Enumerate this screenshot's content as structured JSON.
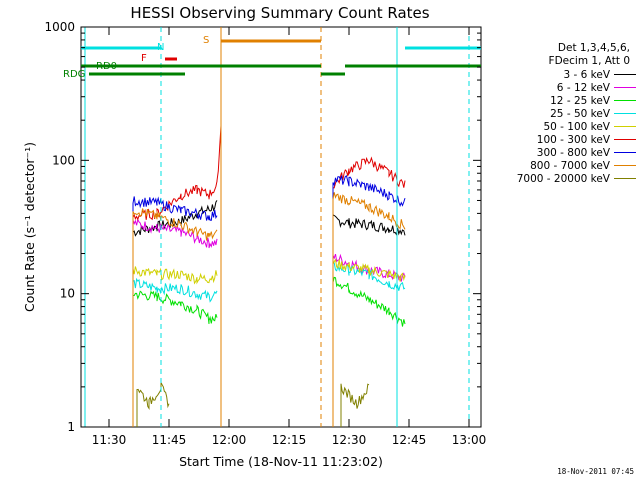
{
  "chart_data": {
    "type": "line",
    "title": "HESSI Observing Summary Count Rates",
    "xlabel": "Start Time (18-Nov-11 11:23:02)",
    "ylabel": "Count Rate (s⁻¹ detector⁻¹)",
    "yscale": "log",
    "ylim": [
      1,
      1000
    ],
    "xlim": [
      "11:23",
      "13:03"
    ],
    "x_ticks": [
      "11:30",
      "11:45",
      "12:00",
      "12:15",
      "12:30",
      "12:45",
      "13:00"
    ],
    "y_ticks": [
      "1",
      "10",
      "100",
      "1000"
    ],
    "legend_placement": "right",
    "legend_header": [
      "Det 1,3,4,5,6,",
      "FDecim 1, Att 0"
    ],
    "series": [
      {
        "name": "3 - 6 keV",
        "color": "#000000",
        "x": [
          "11:36",
          "11:42",
          "11:48",
          "11:52",
          "11:55",
          "11:57",
          "12:26",
          "12:30",
          "12:35",
          "12:40",
          "12:44"
        ],
        "values": [
          29,
          32,
          35,
          40,
          43,
          47,
          36,
          34,
          33,
          31,
          30
        ]
      },
      {
        "name": "6 - 12 keV",
        "color": "#e000e0",
        "x": [
          "11:36",
          "11:42",
          "11:48",
          "11:52",
          "11:55",
          "11:57",
          "12:26",
          "12:30",
          "12:35",
          "12:40",
          "12:44"
        ],
        "values": [
          34,
          31,
          29,
          26,
          24,
          24,
          19,
          17,
          15,
          14,
          13
        ]
      },
      {
        "name": "12 - 25 keV",
        "color": "#00e000",
        "x": [
          "11:36",
          "11:42",
          "11:48",
          "11:52",
          "11:55",
          "11:57",
          "12:26",
          "12:30",
          "12:35",
          "12:40",
          "12:44"
        ],
        "values": [
          10,
          9.5,
          8.5,
          7.5,
          6.5,
          6.5,
          13,
          11,
          9,
          7.5,
          6
        ]
      },
      {
        "name": "25 - 50 keV",
        "color": "#00e0e0",
        "x": [
          "11:36",
          "11:42",
          "11:48",
          "11:52",
          "11:55",
          "11:57",
          "12:26",
          "12:30",
          "12:35",
          "12:40",
          "12:44"
        ],
        "values": [
          12,
          11,
          11,
          10,
          9.5,
          10,
          16,
          15,
          14,
          12,
          11
        ]
      },
      {
        "name": "50 - 100 keV",
        "color": "#d0d000",
        "x": [
          "11:36",
          "11:42",
          "11:48",
          "11:52",
          "11:55",
          "11:57",
          "12:26",
          "12:30",
          "12:35",
          "12:40",
          "12:44"
        ],
        "values": [
          15,
          14,
          14,
          13,
          13,
          14,
          17,
          16,
          15,
          14,
          13
        ]
      },
      {
        "name": "100 - 300 keV",
        "color": "#e00000",
        "x": [
          "11:36",
          "11:42",
          "11:48",
          "11:52",
          "11:55",
          "11:57",
          "11:58",
          "12:26",
          "12:30",
          "12:35",
          "12:40",
          "12:44"
        ],
        "values": [
          38,
          40,
          55,
          60,
          55,
          65,
          180,
          65,
          85,
          100,
          80,
          65
        ]
      },
      {
        "name": "300 - 800 keV",
        "color": "#0000e0",
        "x": [
          "11:36",
          "11:42",
          "11:48",
          "11:52",
          "11:55",
          "11:57",
          "12:26",
          "12:30",
          "12:35",
          "12:40",
          "12:44"
        ],
        "values": [
          50,
          48,
          42,
          40,
          38,
          40,
          72,
          70,
          63,
          55,
          48
        ]
      },
      {
        "name": "800 - 7000 keV",
        "color": "#e08000",
        "x": [
          "11:36",
          "11:42",
          "11:48",
          "11:52",
          "11:55",
          "11:57",
          "12:26",
          "12:30",
          "12:35",
          "12:40",
          "12:44"
        ],
        "values": [
          43,
          38,
          33,
          29,
          27,
          28,
          55,
          50,
          45,
          38,
          32
        ]
      },
      {
        "name": "7000 - 20000 keV",
        "color": "#808000",
        "x": [
          "11:37",
          "11:40",
          "11:43",
          "11:45",
          "12:28",
          "12:32",
          "12:35"
        ],
        "values": [
          2,
          1.5,
          2,
          1.5,
          2,
          1.5,
          2
        ]
      }
    ],
    "annotations": {
      "markers": [
        {
          "label": "N",
          "color": "#00e0e0"
        },
        {
          "label": "F",
          "color": "#e00000"
        },
        {
          "label": "S",
          "color": "#e08000"
        },
        {
          "label": "RD0",
          "color": "#008000"
        },
        {
          "label": "RDG",
          "color": "#008000"
        }
      ],
      "footer_stamp": "18-Nov-2011 07:45"
    }
  }
}
